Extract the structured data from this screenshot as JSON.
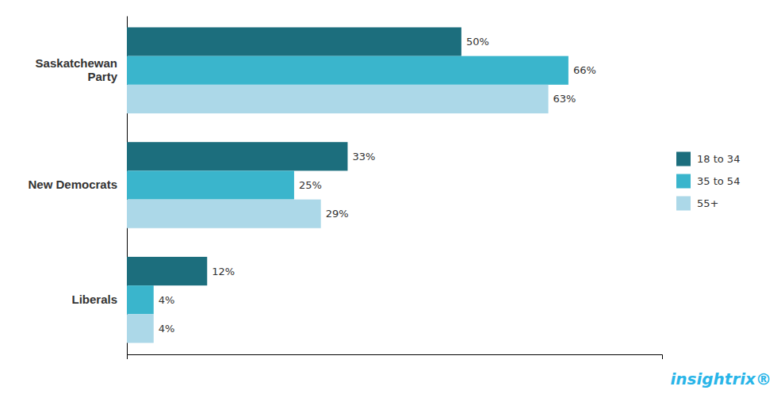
{
  "chart_data": {
    "type": "bar",
    "orientation": "horizontal",
    "categories": [
      "Saskatchewan\nParty",
      "New Democrats",
      "Liberals"
    ],
    "series": [
      {
        "name": "18 to 34",
        "color": "#1c6e7d",
        "values": [
          50,
          33,
          12
        ],
        "value_labels": [
          "50%",
          "33%",
          "12%"
        ]
      },
      {
        "name": "35 to 54",
        "color": "#3ab5cc",
        "values": [
          66,
          25,
          4
        ],
        "value_labels": [
          "66%",
          "25%",
          "4%"
        ]
      },
      {
        "name": "55+",
        "color": "#acd8e8",
        "values": [
          63,
          29,
          4
        ],
        "value_labels": [
          "63%",
          "29%",
          "4%"
        ]
      }
    ],
    "xlim": [
      0,
      80
    ],
    "data_labels": true,
    "tick_labels": "y",
    "legend": "right",
    "annotations": [
      {
        "text": "insightrix®",
        "color": "#29b5e8"
      }
    ]
  }
}
